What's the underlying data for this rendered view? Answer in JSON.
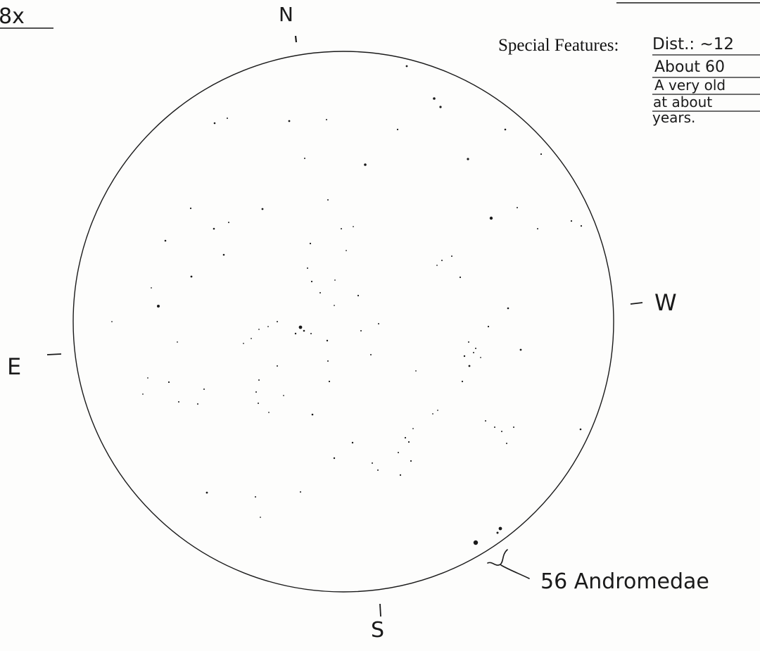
{
  "magnification": "8x",
  "compass": {
    "north": "N",
    "south": "S",
    "east": "E",
    "west": "W"
  },
  "special_features": {
    "label": "Special Features:",
    "lines": [
      "Dist.: ~12",
      "About 60",
      "A very old",
      "at about",
      "years."
    ]
  },
  "annotations": {
    "star_label": "56 Andromedae"
  },
  "colors": {
    "ink": "#1a1a1a",
    "paper": "#fdfdfc"
  }
}
